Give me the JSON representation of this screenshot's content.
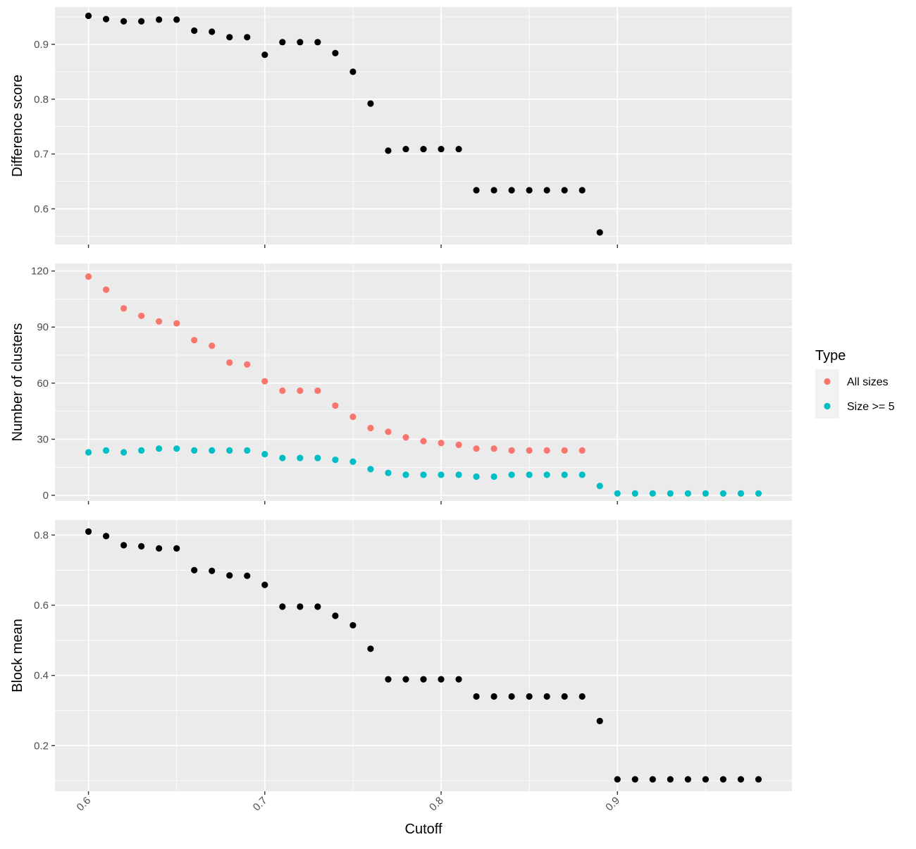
{
  "chart_data": {
    "type": "scatter",
    "xlabel": "Cutoff",
    "xlim": [
      0.581,
      0.999
    ],
    "x_ticks": [
      0.6,
      0.7,
      0.8,
      0.9
    ],
    "x_tick_labels": [
      "0.6",
      "0.7",
      "0.8",
      "0.9"
    ],
    "grid": true,
    "legend": {
      "title": "Type",
      "placement": "right",
      "entries": [
        {
          "label": "All sizes",
          "color": "#F8766D"
        },
        {
          "label": "Size >= 5",
          "color": "#00BFC4"
        }
      ]
    },
    "panels": [
      {
        "ylabel": "Difference score",
        "ylim": [
          0.535,
          0.968
        ],
        "y_ticks": [
          0.6,
          0.7,
          0.8,
          0.9
        ],
        "y_tick_labels": [
          "0.6",
          "0.7",
          "0.8",
          "0.9"
        ],
        "series": [
          {
            "color": "#000000",
            "x": [
              0.6,
              0.61,
              0.62,
              0.63,
              0.64,
              0.65,
              0.66,
              0.67,
              0.68,
              0.69,
              0.7,
              0.71,
              0.72,
              0.73,
              0.74,
              0.75,
              0.76,
              0.77,
              0.78,
              0.79,
              0.8,
              0.81,
              0.82,
              0.83,
              0.84,
              0.85,
              0.86,
              0.87,
              0.88,
              0.89
            ],
            "y": [
              0.952,
              0.946,
              0.942,
              0.942,
              0.945,
              0.945,
              0.925,
              0.923,
              0.913,
              0.913,
              0.881,
              0.904,
              0.904,
              0.904,
              0.884,
              0.85,
              0.792,
              0.706,
              0.709,
              0.709,
              0.709,
              0.709,
              0.634,
              0.634,
              0.634,
              0.634,
              0.634,
              0.634,
              0.634,
              0.557
            ]
          }
        ]
      },
      {
        "ylabel": "Number of clusters",
        "ylim": [
          -3,
          124
        ],
        "y_ticks": [
          0,
          30,
          60,
          90,
          120
        ],
        "y_tick_labels": [
          "0",
          "30",
          "60",
          "90",
          "120"
        ],
        "series": [
          {
            "name": "All sizes",
            "color": "#F8766D",
            "x": [
              0.6,
              0.61,
              0.62,
              0.63,
              0.64,
              0.65,
              0.66,
              0.67,
              0.68,
              0.69,
              0.7,
              0.71,
              0.72,
              0.73,
              0.74,
              0.75,
              0.76,
              0.77,
              0.78,
              0.79,
              0.8,
              0.81,
              0.82,
              0.83,
              0.84,
              0.85,
              0.86,
              0.87,
              0.88
            ],
            "y": [
              117,
              110,
              100,
              96,
              93,
              92,
              83,
              80,
              71,
              70,
              61,
              56,
              56,
              56,
              48,
              42,
              36,
              34,
              31,
              29,
              28,
              27,
              25,
              25,
              24,
              24,
              24,
              24,
              24
            ]
          },
          {
            "name": "Size >= 5",
            "color": "#00BFC4",
            "x": [
              0.6,
              0.61,
              0.62,
              0.63,
              0.64,
              0.65,
              0.66,
              0.67,
              0.68,
              0.69,
              0.7,
              0.71,
              0.72,
              0.73,
              0.74,
              0.75,
              0.76,
              0.77,
              0.78,
              0.79,
              0.8,
              0.81,
              0.82,
              0.83,
              0.84,
              0.85,
              0.86,
              0.87,
              0.88,
              0.89,
              0.9,
              0.91,
              0.92,
              0.93,
              0.94,
              0.95,
              0.96,
              0.97,
              0.98
            ],
            "y": [
              23,
              24,
              23,
              24,
              25,
              25,
              24,
              24,
              24,
              24,
              22,
              20,
              20,
              20,
              19,
              18,
              14,
              12,
              11,
              11,
              11,
              11,
              10,
              10,
              11,
              11,
              11,
              11,
              11,
              5,
              1,
              1,
              1,
              1,
              1,
              1,
              1,
              1,
              1
            ]
          }
        ]
      },
      {
        "ylabel": "Block mean",
        "ylim": [
          0.07,
          0.843
        ],
        "y_ticks": [
          0.2,
          0.4,
          0.6,
          0.8
        ],
        "y_tick_labels": [
          "0.2",
          "0.4",
          "0.6",
          "0.8"
        ],
        "series": [
          {
            "color": "#000000",
            "x": [
              0.6,
              0.61,
              0.62,
              0.63,
              0.64,
              0.65,
              0.66,
              0.67,
              0.68,
              0.69,
              0.7,
              0.71,
              0.72,
              0.73,
              0.74,
              0.75,
              0.76,
              0.77,
              0.78,
              0.79,
              0.8,
              0.81,
              0.82,
              0.83,
              0.84,
              0.85,
              0.86,
              0.87,
              0.88,
              0.89,
              0.9,
              0.91,
              0.92,
              0.93,
              0.94,
              0.95,
              0.96,
              0.97,
              0.98
            ],
            "y": [
              0.81,
              0.797,
              0.771,
              0.768,
              0.762,
              0.762,
              0.7,
              0.698,
              0.685,
              0.684,
              0.658,
              0.596,
              0.596,
              0.596,
              0.57,
              0.543,
              0.476,
              0.389,
              0.389,
              0.389,
              0.389,
              0.389,
              0.34,
              0.34,
              0.34,
              0.34,
              0.34,
              0.34,
              0.34,
              0.27,
              0.104,
              0.104,
              0.104,
              0.104,
              0.104,
              0.104,
              0.104,
              0.104,
              0.104
            ]
          }
        ]
      }
    ]
  }
}
